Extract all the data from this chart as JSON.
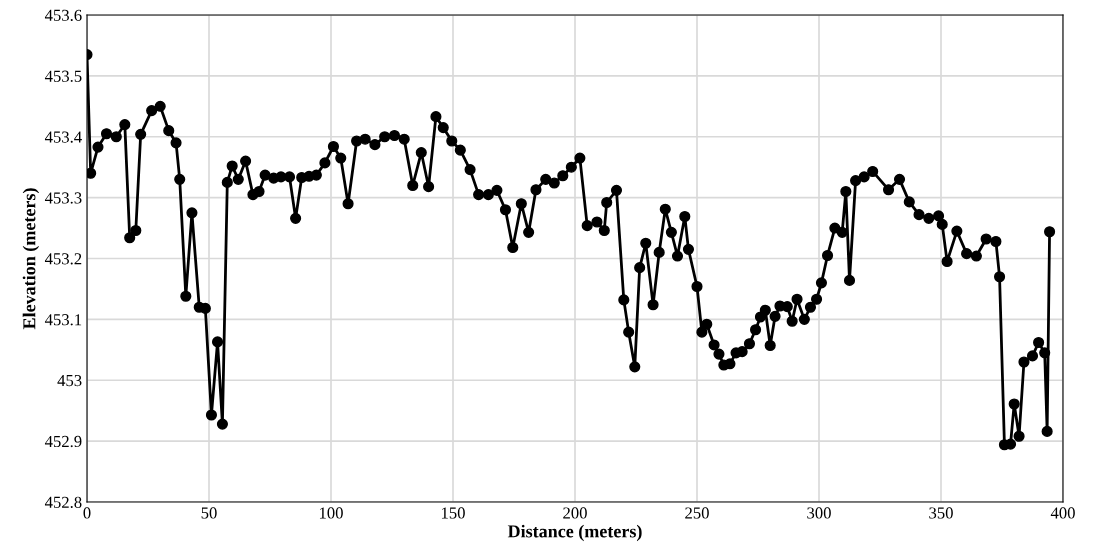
{
  "chart_data": {
    "type": "line",
    "xlabel": "Distance (meters)",
    "ylabel": "Elevation (meters)",
    "x": [
      0,
      1.5,
      4.5,
      8,
      12,
      15.5,
      17.5,
      20,
      22,
      26.5,
      30,
      33.5,
      36.5,
      38,
      40.5,
      43,
      46,
      48.5,
      51,
      53.5,
      55.5,
      57.5,
      59.5,
      62,
      65,
      68,
      70.5,
      73,
      76.5,
      79.5,
      83,
      85.5,
      88,
      91,
      94,
      97.5,
      101,
      104,
      107,
      110.5,
      114,
      118,
      122,
      126,
      130,
      133.5,
      137,
      140,
      143,
      146,
      149.5,
      153,
      157,
      160.5,
      164.5,
      168,
      171.5,
      174.5,
      178,
      181,
      184,
      188,
      191.5,
      195,
      198.5,
      202,
      205,
      209,
      212,
      213,
      217,
      220,
      222,
      224.5,
      226.5,
      229,
      232,
      234.5,
      237,
      239.5,
      242,
      245,
      246.5,
      250,
      252,
      254,
      257,
      259,
      261,
      263.5,
      266,
      268.5,
      271.5,
      274,
      276,
      278,
      280,
      282,
      284,
      287,
      289,
      291,
      294,
      296.5,
      299,
      301,
      303.5,
      306.5,
      309.5,
      311,
      312.5,
      315,
      318.5,
      322,
      328.5,
      333,
      337,
      341,
      345,
      349,
      350.5,
      352.5,
      356.5,
      360.5,
      364.5,
      368.5,
      372.5,
      374,
      376,
      378.5,
      380,
      382,
      384,
      387.5,
      390,
      392.5,
      393.5,
      394.5
    ],
    "series": [
      {
        "color": "#000000",
        "values": [
          453.535,
          453.34,
          453.383,
          453.405,
          453.4,
          453.42,
          453.234,
          453.246,
          453.404,
          453.443,
          453.45,
          453.41,
          453.39,
          453.33,
          453.138,
          453.275,
          453.12,
          453.118,
          452.943,
          453.063,
          452.928,
          453.325,
          453.352,
          453.33,
          453.36,
          453.305,
          453.31,
          453.337,
          453.332,
          453.334,
          453.334,
          453.266,
          453.333,
          453.335,
          453.337,
          453.357,
          453.384,
          453.365,
          453.29,
          453.393,
          453.396,
          453.387,
          453.4,
          453.402,
          453.396,
          453.32,
          453.374,
          453.318,
          453.433,
          453.415,
          453.393,
          453.378,
          453.346,
          453.305,
          453.305,
          453.312,
          453.28,
          453.218,
          453.29,
          453.243,
          453.313,
          453.33,
          453.324,
          453.336,
          453.35,
          453.365,
          453.254,
          453.26,
          453.246,
          453.292,
          453.312,
          453.132,
          453.079,
          453.022,
          453.185,
          453.225,
          453.124,
          453.21,
          453.281,
          453.243,
          453.204,
          453.269,
          453.215,
          453.154,
          453.079,
          453.092,
          453.058,
          453.043,
          453.025,
          453.027,
          453.045,
          453.047,
          453.06,
          453.083,
          453.104,
          453.115,
          453.057,
          453.105,
          453.122,
          453.121,
          453.097,
          453.133,
          453.1,
          453.12,
          453.133,
          453.16,
          453.205,
          453.25,
          453.243,
          453.31,
          453.164,
          453.328,
          453.334,
          453.343,
          453.313,
          453.33,
          453.293,
          453.272,
          453.266,
          453.27,
          453.256,
          453.195,
          453.245,
          453.208,
          453.204,
          453.232,
          453.228,
          453.17,
          452.894,
          452.895,
          452.961,
          452.908,
          453.03,
          453.04,
          453.062,
          453.045,
          452.916,
          453.244
        ]
      }
    ],
    "xlim": [
      0,
      400
    ],
    "xticks": [
      0,
      50,
      100,
      150,
      200,
      250,
      300,
      350,
      400
    ],
    "ylim": [
      452.8,
      453.6
    ],
    "yticks": [
      {
        "value": 452.8,
        "label": "452.8"
      },
      {
        "value": 452.9,
        "label": "452.9"
      },
      {
        "value": 453,
        "label": "453"
      },
      {
        "value": 453.1,
        "label": "453.1"
      },
      {
        "value": 453.2,
        "label": "453.2"
      },
      {
        "value": 453.3,
        "label": "453.3"
      },
      {
        "value": 453.4,
        "label": "453.4"
      },
      {
        "value": 453.5,
        "label": "453.5"
      },
      {
        "value": 453.6,
        "label": "453.6"
      }
    ],
    "grid": true,
    "marker": "circle",
    "line_style": "solid"
  }
}
